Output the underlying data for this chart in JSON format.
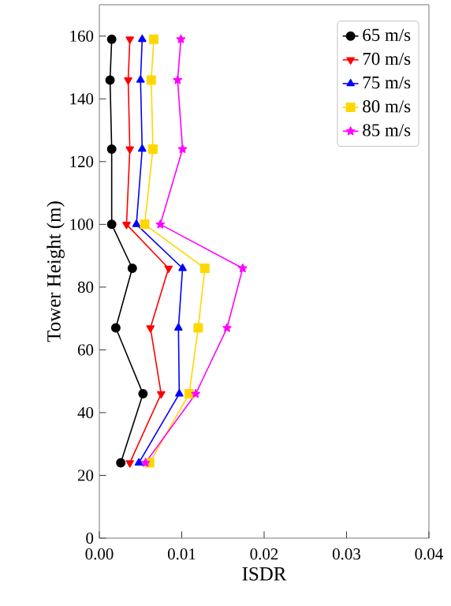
{
  "chart_data": {
    "type": "line",
    "xlabel": "ISDR",
    "ylabel": "Tower Height (m)",
    "xlim": [
      0,
      0.04
    ],
    "ylim": [
      0,
      170
    ],
    "xticks": [
      {
        "value": 0,
        "label": "0.00"
      },
      {
        "value": 0.01,
        "label": "0.01"
      },
      {
        "value": 0.02,
        "label": "0.02"
      },
      {
        "value": 0.03,
        "label": "0.03"
      },
      {
        "value": 0.04,
        "label": "0.04"
      }
    ],
    "yticks": [
      0,
      20,
      40,
      60,
      80,
      100,
      120,
      140,
      160
    ],
    "legend": "top right",
    "grid": false,
    "series": [
      {
        "name": "65 m/s",
        "color": "#000000",
        "marker": "circle",
        "x": [
          0.0015,
          0.0013,
          0.0015,
          0.0015,
          0.004,
          0.002,
          0.0053,
          0.0026
        ],
        "values": [
          159,
          146,
          124,
          100,
          86,
          67,
          46,
          24
        ]
      },
      {
        "name": "70 m/s",
        "color": "#ff0000",
        "marker": "triangle_down",
        "x": [
          0.0037,
          0.0035,
          0.0037,
          0.0033,
          0.0084,
          0.0062,
          0.0075,
          0.0037
        ],
        "values": [
          159,
          146,
          124,
          100,
          86,
          67,
          46,
          24
        ]
      },
      {
        "name": "75 m/s",
        "color": "#0000ff",
        "marker": "triangle",
        "x": [
          0.0052,
          0.005,
          0.0052,
          0.0045,
          0.0101,
          0.0096,
          0.0097,
          0.0048
        ],
        "values": [
          159,
          146,
          124,
          100,
          86,
          67,
          46,
          24
        ]
      },
      {
        "name": "80 m/s",
        "color": "#ffd700",
        "marker": "square",
        "x": [
          0.0066,
          0.0063,
          0.0065,
          0.0055,
          0.0128,
          0.012,
          0.0109,
          0.0061
        ],
        "values": [
          159,
          146,
          124,
          100,
          86,
          67,
          46,
          24
        ]
      },
      {
        "name": "85 m/s",
        "color": "#ff00ff",
        "marker": "star",
        "x": [
          0.0099,
          0.0095,
          0.0101,
          0.0074,
          0.0174,
          0.0155,
          0.0117,
          0.0056
        ],
        "values": [
          159,
          146,
          124,
          100,
          86,
          67,
          46,
          24
        ]
      }
    ]
  }
}
